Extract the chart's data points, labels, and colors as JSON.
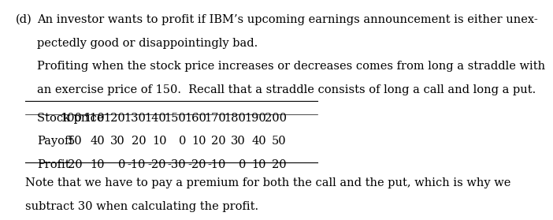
{
  "label_d": "(d)",
  "line1": "An investor wants to profit if IBM’s upcoming earnings announcement is either unex-",
  "line2": "pectedly good or disappointingly bad.",
  "line3": "Profiting when the stock price increases or decreases comes from long a straddle with",
  "line4": "an exercise price of 150.  Recall that a straddle consists of long a call and long a put.",
  "table_header": [
    "Stock price",
    "100",
    "110",
    "120",
    "130",
    "140",
    "150",
    "160",
    "170",
    "180",
    "190",
    "200"
  ],
  "table_payoff": [
    "Payoff",
    "50",
    "40",
    "30",
    "20",
    "10",
    "0",
    "10",
    "20",
    "30",
    "40",
    "50"
  ],
  "table_profit": [
    "Profit",
    "20",
    "10",
    "0",
    "-10",
    "-20",
    "-30",
    "-20",
    "-10",
    "0",
    "10",
    "20"
  ],
  "note_line1": "Note that we have to pay a premium for both the call and the put, which is why we",
  "note_line2": "subtract 30 when calculating the profit.",
  "bg_color": "#ffffff",
  "text_color": "#000000",
  "font_size": 10.5,
  "font_family": "serif"
}
